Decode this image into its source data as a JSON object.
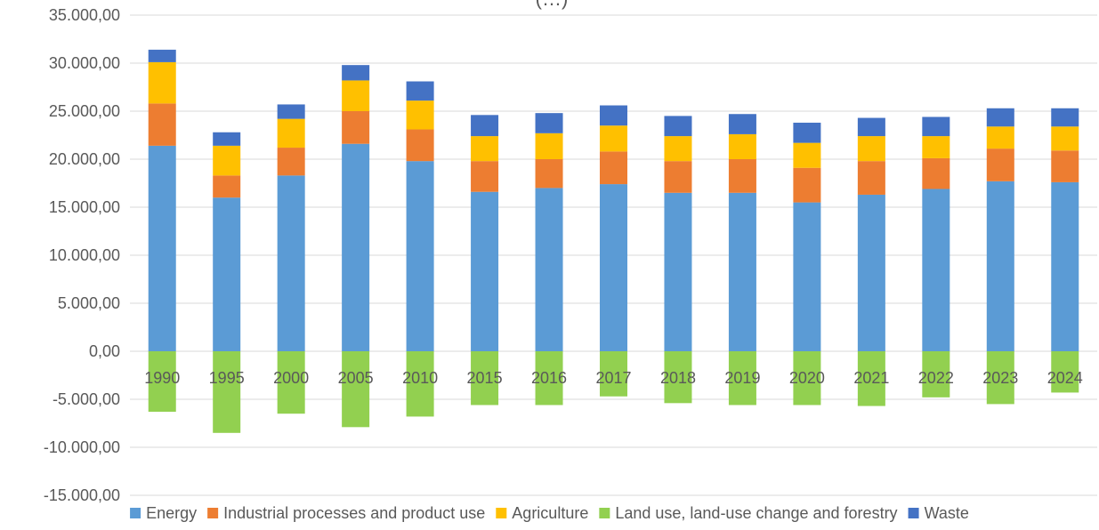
{
  "chart_data": {
    "type": "bar",
    "stacked": true,
    "title": "(…)",
    "categories": [
      "1990",
      "1995",
      "2000",
      "2005",
      "2010",
      "2015",
      "2016",
      "2017",
      "2018",
      "2019",
      "2020",
      "2021",
      "2022",
      "2023",
      "2024"
    ],
    "ylim": [
      -15000,
      35000
    ],
    "yticks": [
      -15000,
      -10000,
      -5000,
      0,
      5000,
      10000,
      15000,
      20000,
      25000,
      30000,
      35000
    ],
    "ytick_labels": [
      "-15.000,00",
      "-10.000,00",
      "-5.000,00",
      "0,00",
      "5.000,00",
      "10.000,00",
      "15.000,00",
      "20.000,00",
      "25.000,00",
      "30.000,00",
      "35.000,00"
    ],
    "grid": true,
    "legend_position": "bottom",
    "series": [
      {
        "name": "Energy",
        "color": "#5B9BD5",
        "values": [
          21400,
          16000,
          18300,
          21600,
          19800,
          16600,
          17000,
          17400,
          16500,
          16500,
          15500,
          16300,
          16900,
          17700,
          17600
        ]
      },
      {
        "name": "Industrial processes and product use",
        "color": "#ED7D31",
        "values": [
          4400,
          2300,
          2900,
          3400,
          3300,
          3200,
          3000,
          3400,
          3300,
          3500,
          3600,
          3500,
          3200,
          3400,
          3300
        ]
      },
      {
        "name": "Agriculture",
        "color": "#FFC000",
        "values": [
          4300,
          3100,
          3000,
          3200,
          3000,
          2600,
          2700,
          2700,
          2600,
          2600,
          2600,
          2600,
          2300,
          2300,
          2500
        ]
      },
      {
        "name": "Land use, land-use change and forestry",
        "color": "#92D050",
        "values": [
          -6300,
          -8500,
          -6500,
          -7900,
          -6800,
          -5600,
          -5600,
          -4700,
          -5400,
          -5600,
          -5600,
          -5700,
          -4800,
          -5500,
          -4300
        ]
      },
      {
        "name": "Waste",
        "color": "#4472C4",
        "values": [
          1300,
          1400,
          1500,
          1600,
          2000,
          2200,
          2100,
          2100,
          2100,
          2100,
          2100,
          1900,
          2000,
          1900,
          1900
        ]
      }
    ]
  }
}
